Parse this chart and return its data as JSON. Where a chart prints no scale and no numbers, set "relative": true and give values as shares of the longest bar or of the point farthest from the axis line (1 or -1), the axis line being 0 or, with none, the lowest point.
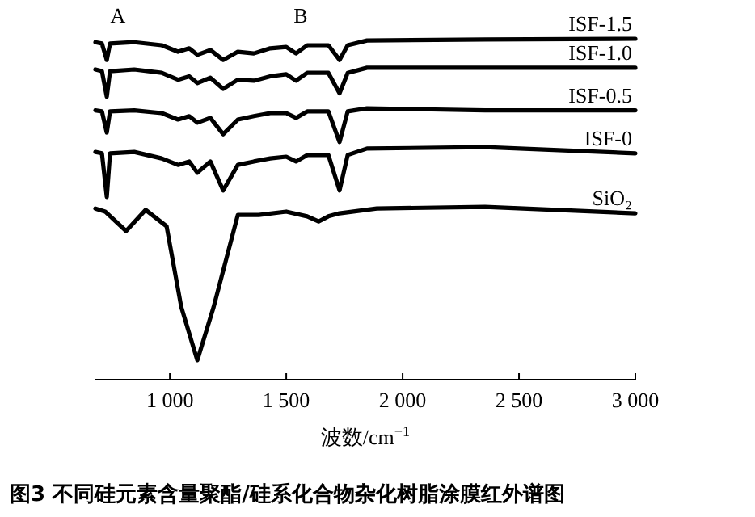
{
  "chart_data": {
    "type": "line",
    "title": "图3  不同硅元素含量聚酯/硅系化合物杂化树脂涂膜红外谱图",
    "xlabel": "波数/cm$^{−1}$",
    "relative": true,
    "line_style": "solid",
    "xlim": [
      680,
      3000
    ],
    "xticks": [
      {
        "value": 1000,
        "label": "1 000"
      },
      {
        "value": 1500,
        "label": "1 500"
      },
      {
        "value": 2000,
        "label": "2 000"
      },
      {
        "value": 2500,
        "label": "2 500"
      },
      {
        "value": 3000,
        "label": "3 000"
      }
    ],
    "annotations": [
      "A",
      "B"
    ],
    "series": [
      {
        "name": "ISF-1.5",
        "color": "#000000",
        "x": [
          680,
          708,
          729,
          743,
          847,
          965,
          1035,
          1083,
          1118,
          1174,
          1229,
          1292,
          1361,
          1431,
          1500,
          1542,
          1590,
          1681,
          1729,
          1764,
          1847,
          2354,
          3000
        ],
        "values": [
          0.99,
          0.986,
          0.938,
          0.986,
          0.99,
          0.981,
          0.962,
          0.972,
          0.953,
          0.967,
          0.938,
          0.962,
          0.957,
          0.972,
          0.976,
          0.957,
          0.981,
          0.981,
          0.938,
          0.981,
          0.995,
          0.998,
          1
        ]
      },
      {
        "name": "ISF-1.0",
        "color": "#000000",
        "x": [
          680,
          708,
          729,
          743,
          847,
          965,
          1035,
          1083,
          1118,
          1174,
          1229,
          1292,
          1361,
          1431,
          1500,
          1542,
          1590,
          1681,
          1729,
          1764,
          1847,
          2354,
          3000
        ],
        "values": [
          0.91,
          0.905,
          0.83,
          0.905,
          0.91,
          0.9,
          0.88,
          0.89,
          0.87,
          0.886,
          0.853,
          0.88,
          0.877,
          0.89,
          0.896,
          0.877,
          0.9,
          0.9,
          0.84,
          0.9,
          0.915,
          0.915,
          0.915
        ]
      },
      {
        "name": "ISF-0.5",
        "color": "#000000",
        "x": [
          680,
          708,
          729,
          743,
          847,
          965,
          1035,
          1083,
          1118,
          1174,
          1229,
          1292,
          1361,
          1431,
          1500,
          1542,
          1590,
          1681,
          1729,
          1764,
          1847,
          2354,
          3000
        ],
        "values": [
          0.79,
          0.787,
          0.725,
          0.787,
          0.79,
          0.782,
          0.763,
          0.773,
          0.754,
          0.768,
          0.72,
          0.763,
          0.773,
          0.782,
          0.782,
          0.768,
          0.787,
          0.787,
          0.697,
          0.787,
          0.796,
          0.79,
          0.79
        ]
      },
      {
        "name": "ISF-0",
        "color": "#000000",
        "x": [
          680,
          708,
          729,
          743,
          847,
          965,
          1035,
          1083,
          1118,
          1174,
          1229,
          1292,
          1361,
          1431,
          1500,
          1542,
          1590,
          1681,
          1729,
          1764,
          1847,
          2354,
          3000
        ],
        "values": [
          0.668,
          0.664,
          0.536,
          0.664,
          0.668,
          0.649,
          0.63,
          0.64,
          0.607,
          0.64,
          0.555,
          0.63,
          0.64,
          0.649,
          0.654,
          0.64,
          0.659,
          0.659,
          0.555,
          0.659,
          0.678,
          0.682,
          0.664
        ]
      },
      {
        "name": "SiO₂",
        "color": "#000000",
        "x": [
          680,
          722,
          812,
          896,
          986,
          1049,
          1118,
          1188,
          1292,
          1382,
          1500,
          1590,
          1639,
          1681,
          1729,
          1889,
          2354,
          3000
        ],
        "values": [
          0.502,
          0.493,
          0.436,
          0.498,
          0.45,
          0.213,
          0.057,
          0.213,
          0.483,
          0.483,
          0.493,
          0.479,
          0.464,
          0.479,
          0.488,
          0.502,
          0.507,
          0.488
        ]
      }
    ]
  }
}
